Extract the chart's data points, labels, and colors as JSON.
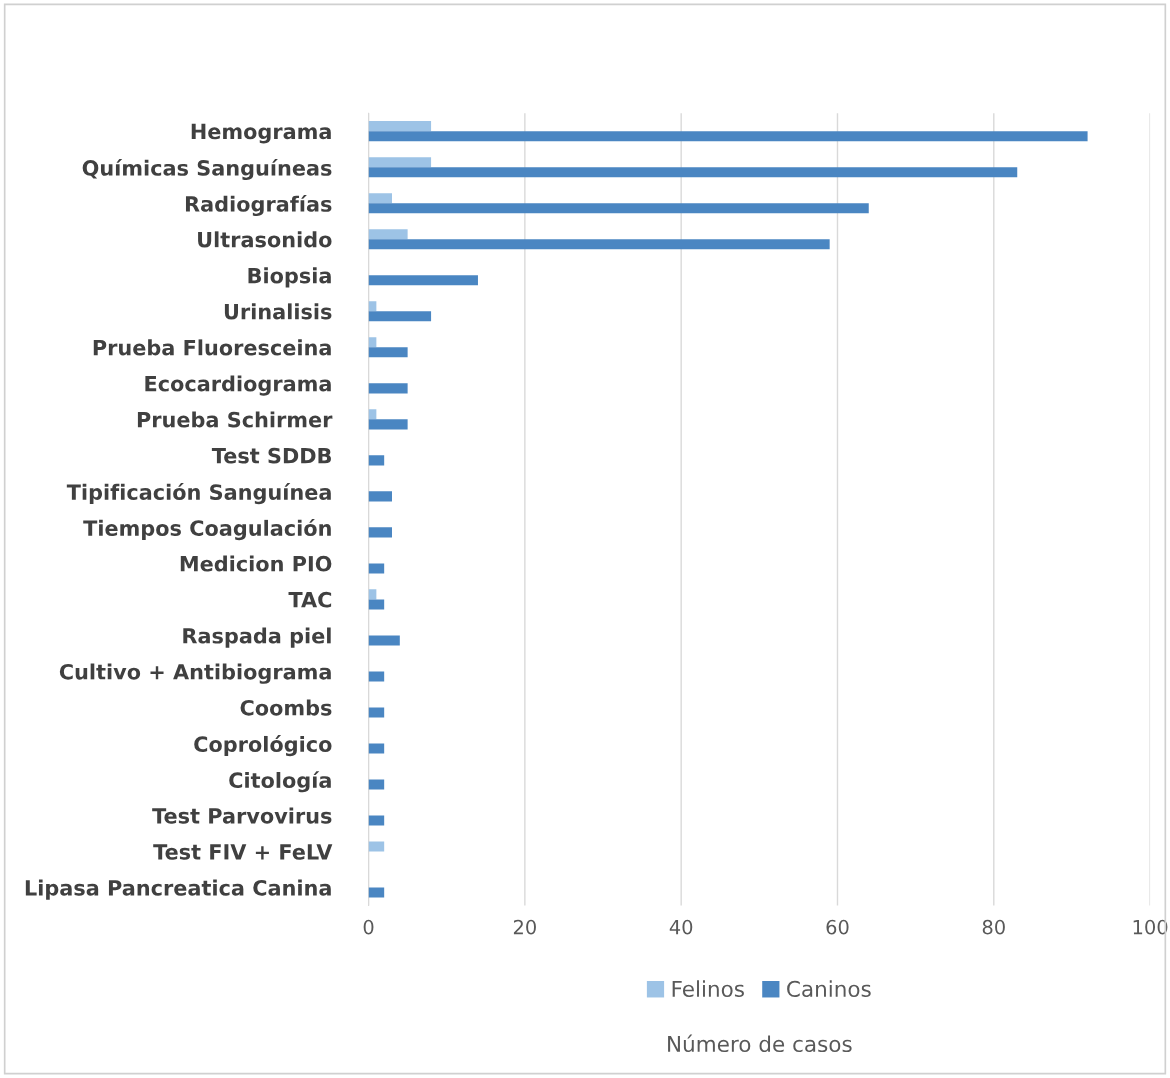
{
  "chart_data": {
    "type": "bar",
    "orientation": "horizontal",
    "xlabel": "Número de casos",
    "categories": [
      "Hemograma",
      "Químicas Sanguíneas",
      "Radiografías",
      "Ultrasonido",
      "Biopsia",
      "Urinalisis",
      "Prueba Fluoresceina",
      "Ecocardiograma",
      "Prueba Schirmer",
      "Test SDDB",
      "Tipificación Sanguínea",
      "Tiempos Coagulación",
      "Medicion PIO",
      "TAC",
      "Raspada piel",
      "Cultivo + Antibiograma",
      "Coombs",
      "Coprológico",
      "Citología",
      "Test Parvovirus",
      "Test FIV + FeLV",
      "Lipasa Pancreatica Canina"
    ],
    "series": [
      {
        "name": "Felinos",
        "color": "#9dc3e6",
        "values": [
          8,
          8,
          3,
          5,
          0,
          1,
          1,
          0,
          1,
          0,
          0,
          0,
          0,
          1,
          0,
          0,
          0,
          0,
          0,
          0,
          2,
          0
        ]
      },
      {
        "name": "Caninos",
        "color": "#4a86c2",
        "values": [
          92,
          83,
          64,
          59,
          14,
          8,
          5,
          5,
          5,
          2,
          3,
          3,
          2,
          2,
          4,
          2,
          2,
          2,
          2,
          2,
          0,
          2
        ]
      }
    ],
    "xlim": [
      0,
      100
    ],
    "xticks": [
      0,
      20,
      40,
      60,
      80,
      100
    ],
    "grid": "x",
    "legend": "bottom"
  }
}
